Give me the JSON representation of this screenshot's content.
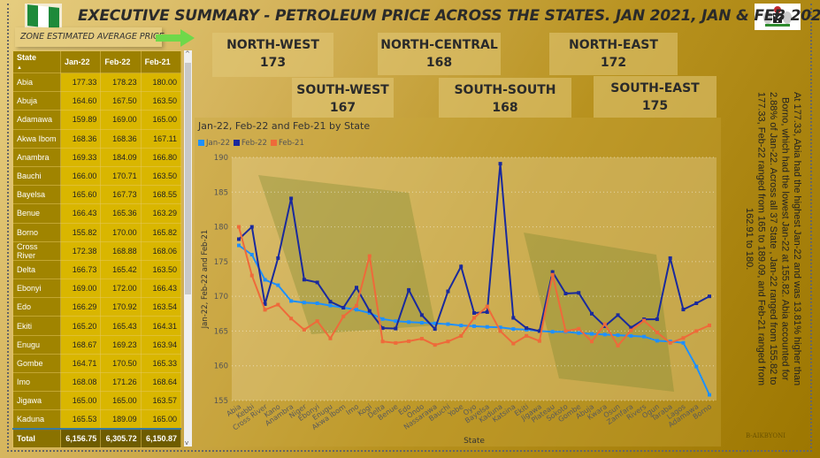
{
  "header": {
    "title": "EXECUTIVE SUMMARY - PETROLEUM PRICE ACROSS THE STATES.  JAN 2021, JAN & FEB 2022.",
    "zone_label": "ZONE ESTIMATED AVERAGE PRICE"
  },
  "zones": [
    {
      "name": "NORTH-WEST",
      "value": "173"
    },
    {
      "name": "NORTH-CENTRAL",
      "value": "168"
    },
    {
      "name": "NORTH-EAST",
      "value": "172"
    },
    {
      "name": "SOUTH-WEST",
      "value": "167"
    },
    {
      "name": "SOUTH-SOUTH",
      "value": "168"
    },
    {
      "name": "SOUTH-EAST",
      "value": "175"
    }
  ],
  "table": {
    "columns": [
      "State",
      "Jan-22",
      "Feb-22",
      "Feb-21"
    ],
    "rows": [
      [
        "Abia",
        "177.33",
        "178.23",
        "180.00"
      ],
      [
        "Abuja",
        "164.60",
        "167.50",
        "163.50"
      ],
      [
        "Adamawa",
        "159.89",
        "169.00",
        "165.00"
      ],
      [
        "Akwa Ibom",
        "168.36",
        "168.36",
        "167.11"
      ],
      [
        "Anambra",
        "169.33",
        "184.09",
        "166.80"
      ],
      [
        "Bauchi",
        "166.00",
        "170.71",
        "163.50"
      ],
      [
        "Bayelsa",
        "165.60",
        "167.73",
        "168.55"
      ],
      [
        "Benue",
        "166.43",
        "165.36",
        "163.29"
      ],
      [
        "Borno",
        "155.82",
        "170.00",
        "165.82"
      ],
      [
        "Cross River",
        "172.38",
        "168.88",
        "168.06"
      ],
      [
        "Delta",
        "166.73",
        "165.42",
        "163.50"
      ],
      [
        "Ebonyi",
        "169.00",
        "172.00",
        "166.43"
      ],
      [
        "Edo",
        "166.29",
        "170.92",
        "163.54"
      ],
      [
        "Ekiti",
        "165.20",
        "165.43",
        "164.31"
      ],
      [
        "Enugu",
        "168.67",
        "169.23",
        "163.94"
      ],
      [
        "Gombe",
        "164.71",
        "170.50",
        "165.33"
      ],
      [
        "Imo",
        "168.08",
        "171.26",
        "168.64"
      ],
      [
        "Jigawa",
        "165.00",
        "165.00",
        "163.57"
      ],
      [
        "Kaduna",
        "165.53",
        "189.09",
        "165.00"
      ]
    ],
    "total": [
      "Total",
      "6,156.75",
      "6,305.72",
      "6,150.87"
    ]
  },
  "narrative": "At 177.33, Abia had the highest Jan-22 and was 13.81% higher than Borno, which had the lowest Jan-22 at 155.82. Abia accounted for 2.88% of Jan-22. Across all 37 State , Jan-22 ranged from 155.82 to 177.33, Feb-22 ranged from 165 to 189.09, and Feb-21 ranged from 162.91 to 180.",
  "signature": "B-AIKBYONI",
  "chart_data": {
    "type": "line",
    "title": "Jan-22, Feb-22 and Feb-21 by State",
    "xlabel": "State",
    "ylabel": "Jan-22, Feb-22 and Feb-21",
    "ylim": [
      155,
      190
    ],
    "yticks": [
      155,
      160,
      165,
      170,
      175,
      180,
      185,
      190
    ],
    "categories": [
      "Abia",
      "Kebbi",
      "Cross River",
      "Kano",
      "Anambra",
      "Niger",
      "Ebonyi",
      "Enugu",
      "Akwa Ibom",
      "Imo",
      "Kogi",
      "Delta",
      "Benue",
      "Edo",
      "Ondo",
      "Nassarawa",
      "Bauchi",
      "Yobe",
      "Oyo",
      "Bayelsa",
      "Kaduna",
      "Katsina",
      "Ekiti",
      "Jigawa",
      "Plateau",
      "Sokoto",
      "Gombe",
      "Abuja",
      "Kwara",
      "Osun",
      "Zamfara",
      "Rivers",
      "Ogun",
      "Taraba",
      "Lagos",
      "Adamawa",
      "Borno"
    ],
    "series": [
      {
        "name": "Jan-22",
        "color": "#1e90ff",
        "values": [
          177.33,
          176,
          172.38,
          171.6,
          169.33,
          169.1,
          169,
          168.67,
          168.36,
          168.08,
          167.6,
          166.73,
          166.43,
          166.29,
          166.2,
          166.1,
          166,
          165.8,
          165.7,
          165.6,
          165.53,
          165.3,
          165.2,
          165,
          164.9,
          164.9,
          164.71,
          164.6,
          164.5,
          164.4,
          164.3,
          164.2,
          163.6,
          163.5,
          163.3,
          159.89,
          155.82
        ]
      },
      {
        "name": "Feb-22",
        "color": "#1a2a9c",
        "values": [
          178.23,
          180,
          168.88,
          175.5,
          184.09,
          172.4,
          172,
          169.23,
          168.36,
          171.26,
          167.9,
          165.42,
          165.36,
          170.92,
          167.3,
          165.3,
          170.71,
          174.3,
          167.6,
          167.73,
          189.09,
          166.9,
          165.43,
          165,
          173.5,
          170.4,
          170.5,
          167.5,
          165.7,
          167.3,
          165.5,
          166.7,
          166.7,
          175.5,
          168.1,
          169,
          170
        ]
      },
      {
        "name": "Feb-21",
        "color": "#ee6a3a",
        "values": [
          180,
          173,
          168.06,
          168.8,
          166.8,
          165.2,
          166.43,
          163.94,
          167.11,
          168.64,
          175.8,
          163.5,
          163.29,
          163.54,
          163.9,
          163,
          163.5,
          164.3,
          166.9,
          168.55,
          165,
          163.2,
          164.31,
          163.57,
          173.1,
          165,
          165.33,
          163.5,
          166,
          162.9,
          165.1,
          166.5,
          164.8,
          163.3,
          164,
          165,
          165.82
        ]
      }
    ]
  }
}
